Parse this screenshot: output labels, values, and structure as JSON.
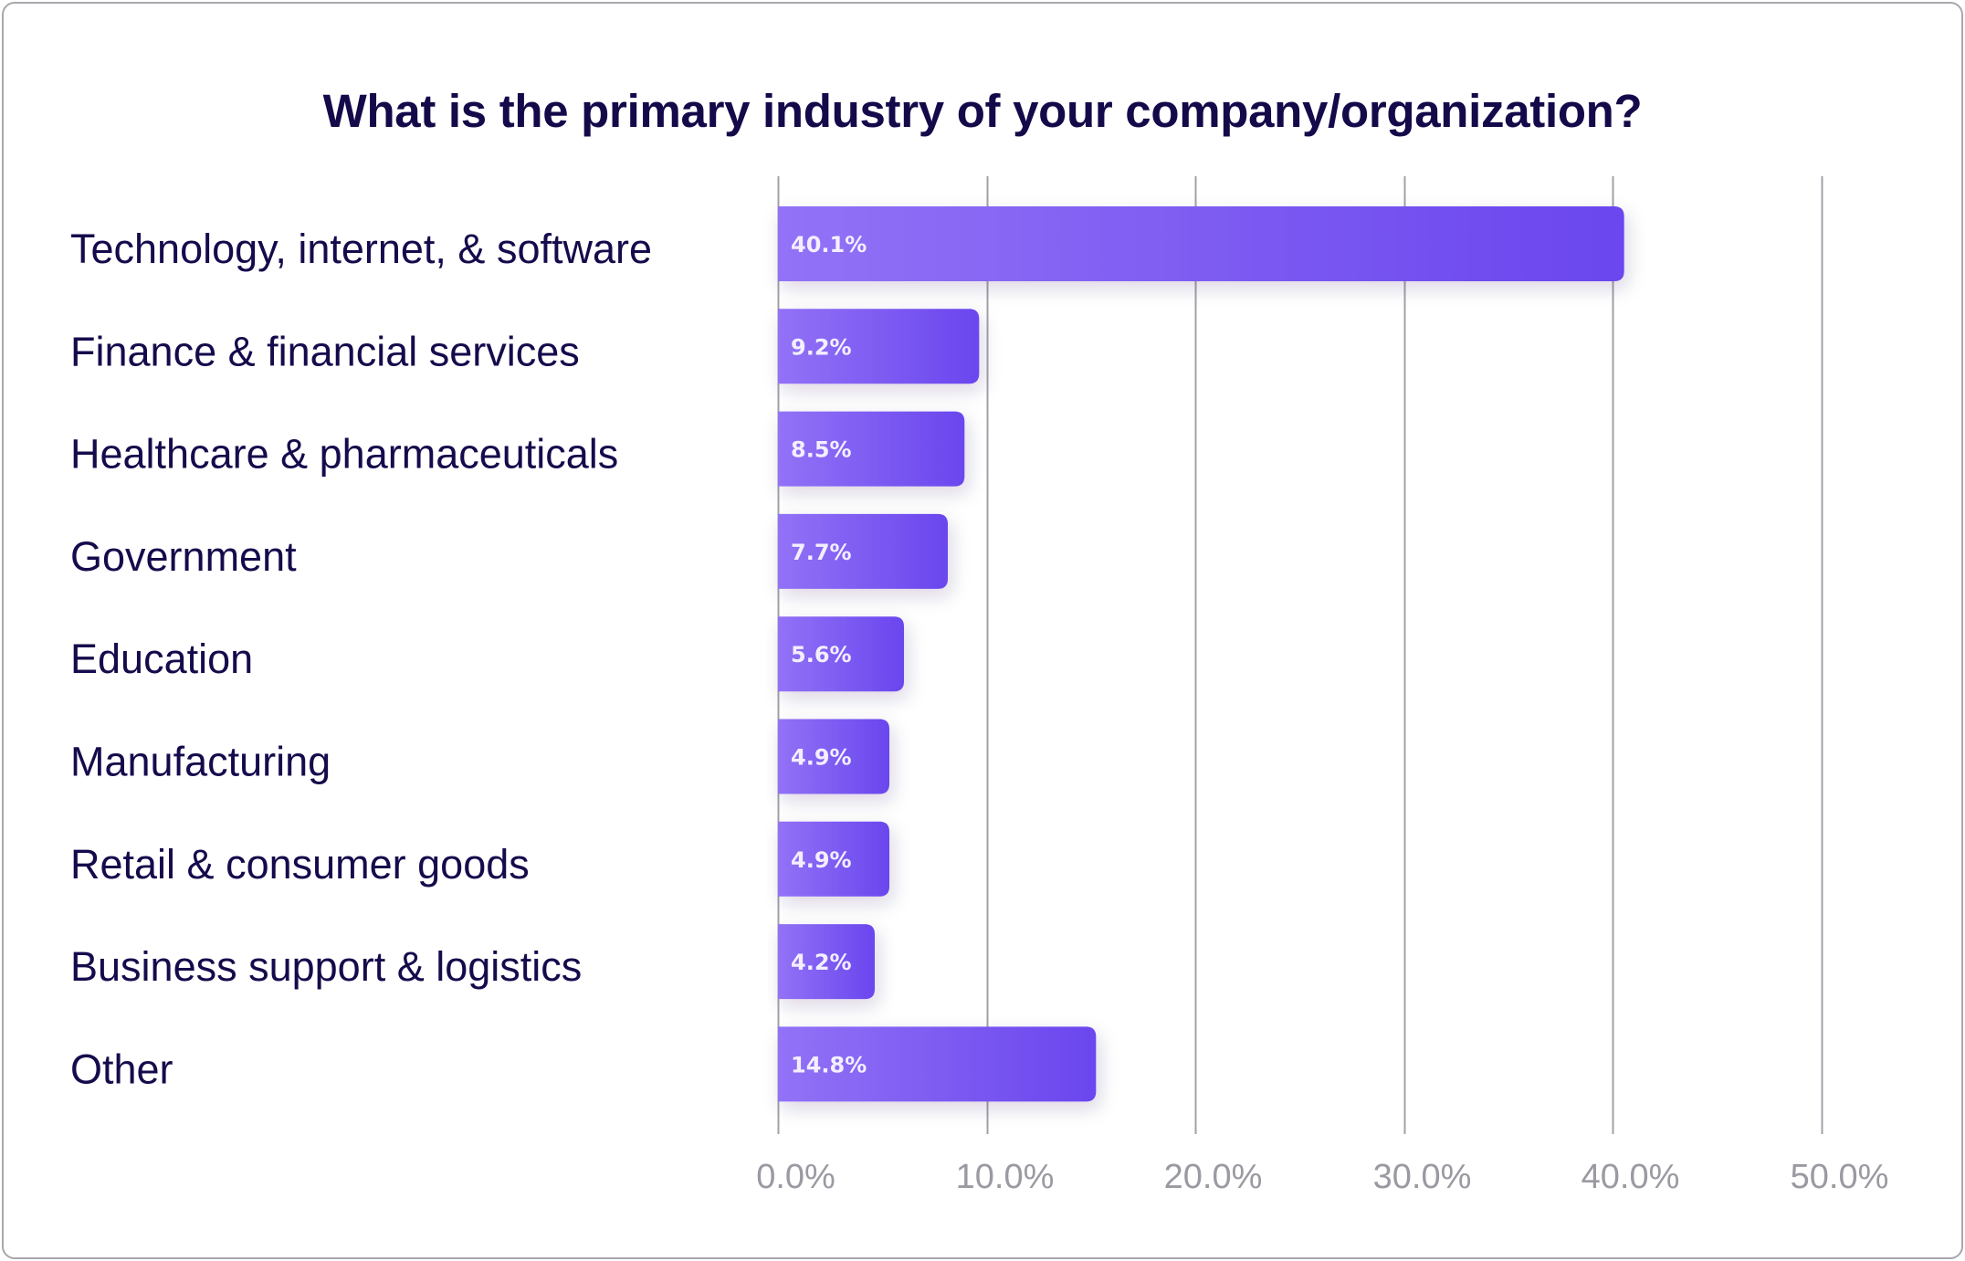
{
  "chart_data": {
    "type": "bar",
    "orientation": "horizontal",
    "title": "What is the primary industry of your company/organization?",
    "xlabel": "",
    "ylabel": "",
    "categories": [
      "Technology, internet, & software",
      "Finance & financial services",
      "Healthcare & pharmaceuticals",
      "Government",
      "Education",
      "Manufacturing",
      "Retail & consumer goods",
      "Business support & logistics",
      "Other"
    ],
    "values": [
      40.1,
      9.2,
      8.5,
      7.7,
      5.6,
      4.9,
      4.9,
      4.2,
      14.8
    ],
    "value_labels": [
      "40.1%",
      "9.2%",
      "8.5%",
      "7.7%",
      "5.6%",
      "4.9%",
      "4.9%",
      "4.2%",
      "14.8%"
    ],
    "xlim": [
      0,
      50
    ],
    "x_ticks": [
      0,
      10,
      20,
      30,
      40,
      50
    ],
    "x_tick_labels": [
      "0.0%",
      "10.0%",
      "20.0%",
      "30.0%",
      "40.0%",
      "50.0%"
    ],
    "grid": true,
    "legend": "none",
    "colors": {
      "bar_gradient_start": "#9272f6",
      "bar_gradient_end": "#6a46ee",
      "title": "#140a4a",
      "category_text": "#150b4c",
      "value_text": "#f3efff",
      "tick_text": "#9b99a1",
      "gridline": "#a3a1a8",
      "dash": "#d9d3f4"
    }
  }
}
